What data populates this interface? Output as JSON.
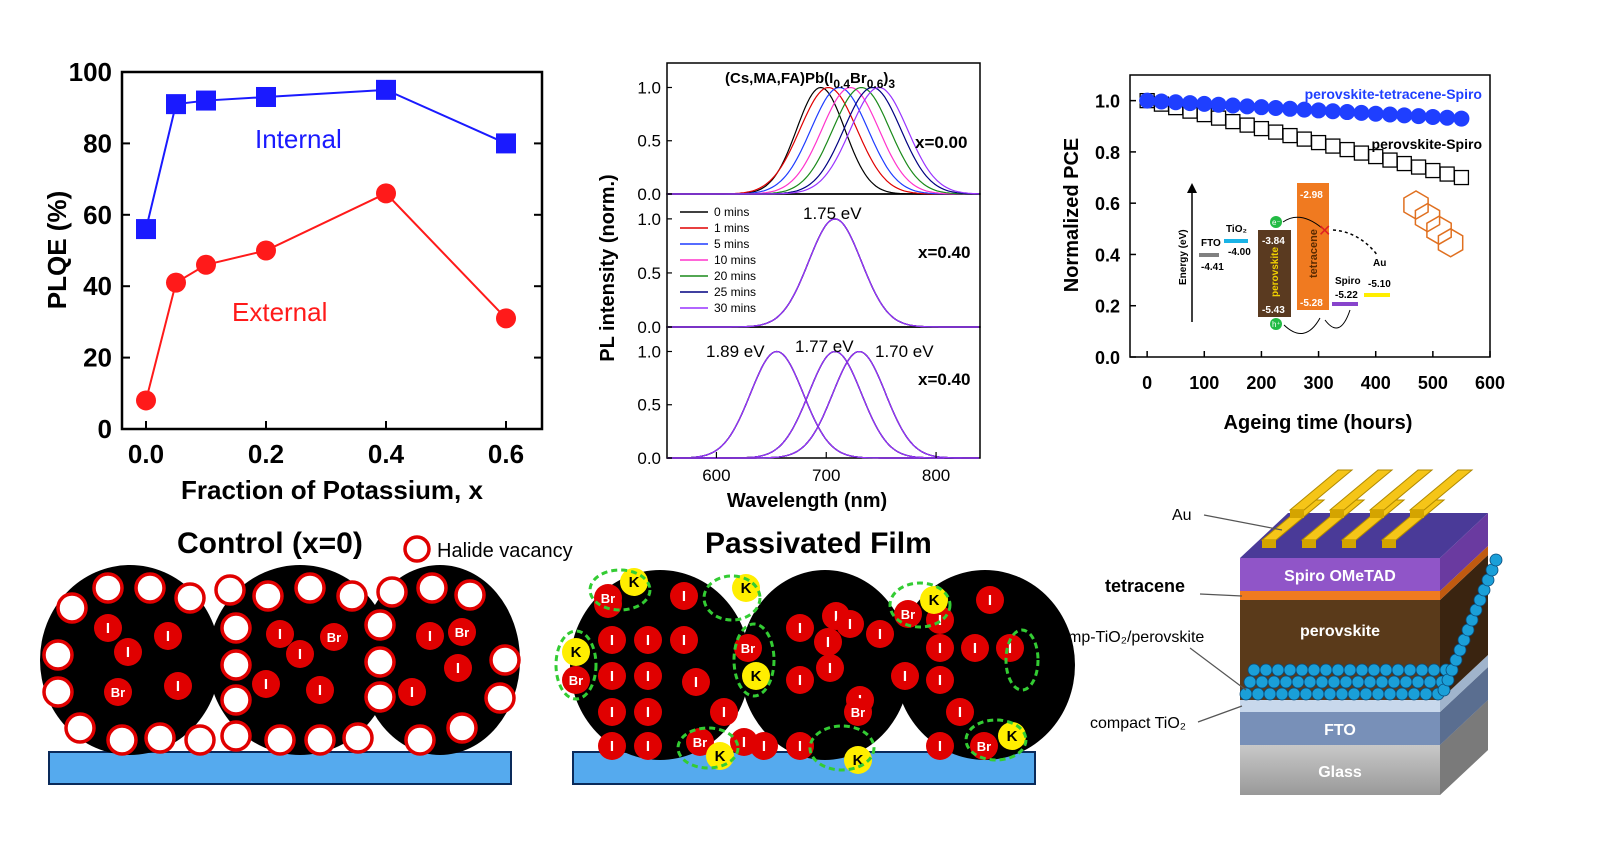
{
  "chart_data": [
    {
      "type": "line",
      "panel": "plqe",
      "xlabel": "Fraction of Potassium, x",
      "ylabel": "PLQE (%)",
      "xlim": [
        -0.04,
        0.66
      ],
      "ylim": [
        0,
        100
      ],
      "xticks": [
        "0.0",
        "0.2",
        "0.4",
        "0.6"
      ],
      "yticks": [
        "0",
        "20",
        "40",
        "60",
        "80",
        "100"
      ],
      "series": [
        {
          "name": "Internal",
          "color": "#1a1aff",
          "marker": "square",
          "x": [
            0.0,
            0.05,
            0.1,
            0.2,
            0.4,
            0.6
          ],
          "y": [
            56,
            91,
            92,
            93,
            95,
            80
          ]
        },
        {
          "name": "External",
          "color": "#ff1a1a",
          "marker": "circle",
          "x": [
            0.0,
            0.05,
            0.1,
            0.2,
            0.4,
            0.6
          ],
          "y": [
            8,
            41,
            46,
            50,
            66,
            31
          ]
        }
      ]
    },
    {
      "type": "line",
      "panel": "pl",
      "title": "(Cs,MA,FA)Pb(I0.4Br0.6)3",
      "xlabel": "Wavelength (nm)",
      "ylabel": "PL intensity (norm.)",
      "xlim": [
        555,
        840
      ],
      "xticks": [
        "600",
        "700",
        "800"
      ],
      "subplot_yticks": [
        "0.0",
        "0.5",
        "1.0"
      ],
      "subplot_labels": [
        "x=0.00",
        "x=0.40",
        "x=0.40"
      ],
      "legend": [
        "0 mins",
        "1 mins",
        "5 mins",
        "10 mins",
        "20 mins",
        "25 mins",
        "30 mins"
      ],
      "legend_colors": [
        "#000000",
        "#e00000",
        "#1e3cff",
        "#ff33cc",
        "#1a8a1a",
        "#000080",
        "#9933ff"
      ],
      "annotations": [
        "1.75 eV",
        "1.89 eV",
        "1.77 eV",
        "1.70 eV"
      ],
      "peak_centers_top": [
        695,
        702,
        712,
        722,
        732,
        742,
        748
      ],
      "peak_center_mid": 708,
      "peak_centers_bottom": [
        655,
        708,
        730
      ]
    },
    {
      "type": "scatter",
      "panel": "pce",
      "xlabel": "Ageing time (hours)",
      "ylabel": "Normalized PCE",
      "xlim": [
        -30,
        600
      ],
      "ylim": [
        0,
        1.1
      ],
      "xticks": [
        "0",
        "100",
        "200",
        "300",
        "400",
        "500",
        "600"
      ],
      "yticks": [
        "0.0",
        "0.2",
        "0.4",
        "0.6",
        "0.8",
        "1.0"
      ],
      "series": [
        {
          "name": "perovskite-tetracene-Spiro",
          "color": "#1f3fff",
          "marker": "filled-circle",
          "start": 1.0,
          "end": 0.93
        },
        {
          "name": "perovskite-Spiro",
          "color": "#000000",
          "marker": "open-square",
          "start": 1.0,
          "end": 0.7
        }
      ],
      "x_step": 25
    }
  ],
  "energy_diagram": {
    "axis_label": "Energy (eV)",
    "fto_label": "FTO",
    "fto_value": "-4.41",
    "tio2_label": "TiO₂",
    "tio2_value": "-4.00",
    "perovskite_label": "perovskite",
    "perovskite_top": "-3.84",
    "perovskite_bottom": "-5.43",
    "tetracene_label": "tetracene",
    "tetracene_top": "-2.98",
    "tetracene_bottom": "-5.28",
    "spiro_label": "Spiro",
    "spiro_value": "-5.22",
    "au_label": "Au",
    "au_value": "-5.10",
    "electron_symbol": "e⁻",
    "hole_symbol": "h⁺"
  },
  "films": {
    "control_title": "Control (x=0)",
    "legend_label": "Halide vacancy",
    "passivated_title": "Passivated Film",
    "iodide": "I",
    "bromide": "Br",
    "potassium": "K"
  },
  "device": {
    "au": "Au",
    "tetracene": "tetracene",
    "mp_tio2": "mp-TiO₂/perovskite",
    "compact_tio2": "compact TiO₂",
    "spiro_layer": "Spiro OMeTAD",
    "perovskite_layer": "perovskite",
    "fto_layer": "FTO",
    "glass_layer": "Glass"
  }
}
